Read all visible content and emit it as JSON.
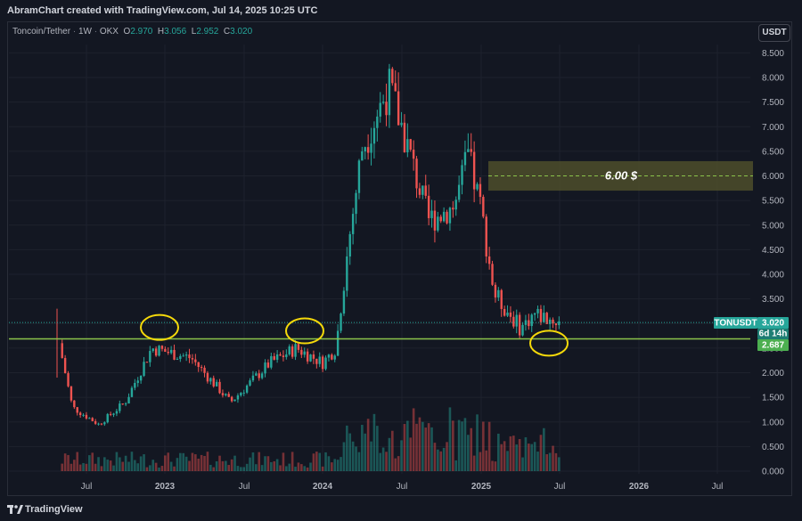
{
  "header": {
    "text": "AbramChart created with TradingView.com, Jul 14, 2025 10:25 UTC"
  },
  "legend": {
    "symbol": "Toncoin/Tether",
    "interval": "1W",
    "exchange": "OKX",
    "o_key": "O",
    "o_val": "2.970",
    "h_key": "H",
    "h_val": "3.056",
    "l_key": "L",
    "l_val": "2.952",
    "c_key": "C",
    "c_val": "3.020"
  },
  "currency_button": "USDT",
  "badges": {
    "ticker": "TONUSDT",
    "price": "3.020",
    "countdown": "6d 14h",
    "support": "2.687"
  },
  "annotation": {
    "text": "6.00 $"
  },
  "footer": {
    "brand": "TradingView"
  },
  "colors": {
    "background": "#131722",
    "up": "#26a69a",
    "down": "#ef5350",
    "support_line": "#8bc34a",
    "circle": "#f5d90a",
    "target_zone": "#4a4a2a"
  },
  "chart_data": {
    "type": "candlestick",
    "title": "Toncoin/Tether · 1W · OKX",
    "y_axis": {
      "ticks": [
        "8.500",
        "8.000",
        "7.500",
        "7.000",
        "6.500",
        "6.000",
        "5.500",
        "5.000",
        "4.500",
        "4.000",
        "3.500",
        "3.000",
        "2.500",
        "2.000",
        "1.500",
        "1.000",
        "0.500",
        "0.000"
      ],
      "range": [
        0,
        8.7
      ],
      "side": "right",
      "currency": "USDT"
    },
    "x_axis": {
      "ticks": [
        "Jul",
        "2023",
        "Jul",
        "2024",
        "Jul",
        "2025",
        "Jul",
        "2026",
        "Jul"
      ]
    },
    "support_level": 2.687,
    "last_price": 3.02,
    "target_level": 6.0,
    "target_zone": [
      5.7,
      6.3
    ],
    "touch_points": [
      "2022-12",
      "2023-11",
      "2025-06"
    ],
    "grid": true,
    "close_path_approx": [
      {
        "date": "2022-05",
        "close": 2.6
      },
      {
        "date": "2022-06",
        "close": 1.3
      },
      {
        "date": "2022-08",
        "close": 0.95
      },
      {
        "date": "2022-10",
        "close": 1.4
      },
      {
        "date": "2022-12",
        "close": 2.5
      },
      {
        "date": "2023-03",
        "close": 2.3
      },
      {
        "date": "2023-06",
        "close": 1.4
      },
      {
        "date": "2023-09",
        "close": 2.2
      },
      {
        "date": "2023-11",
        "close": 2.5
      },
      {
        "date": "2024-01",
        "close": 2.2
      },
      {
        "date": "2024-02",
        "close": 2.5
      },
      {
        "date": "2024-03",
        "close": 4.7
      },
      {
        "date": "2024-04",
        "close": 6.6
      },
      {
        "date": "2024-06",
        "close": 7.8
      },
      {
        "date": "2024-07",
        "close": 7.0
      },
      {
        "date": "2024-09",
        "close": 5.1
      },
      {
        "date": "2024-11",
        "close": 5.4
      },
      {
        "date": "2024-12",
        "close": 6.4
      },
      {
        "date": "2025-01",
        "close": 5.3
      },
      {
        "date": "2025-02",
        "close": 3.6
      },
      {
        "date": "2025-04",
        "close": 2.9
      },
      {
        "date": "2025-05",
        "close": 3.2
      },
      {
        "date": "2025-07",
        "close": 3.02
      }
    ]
  }
}
